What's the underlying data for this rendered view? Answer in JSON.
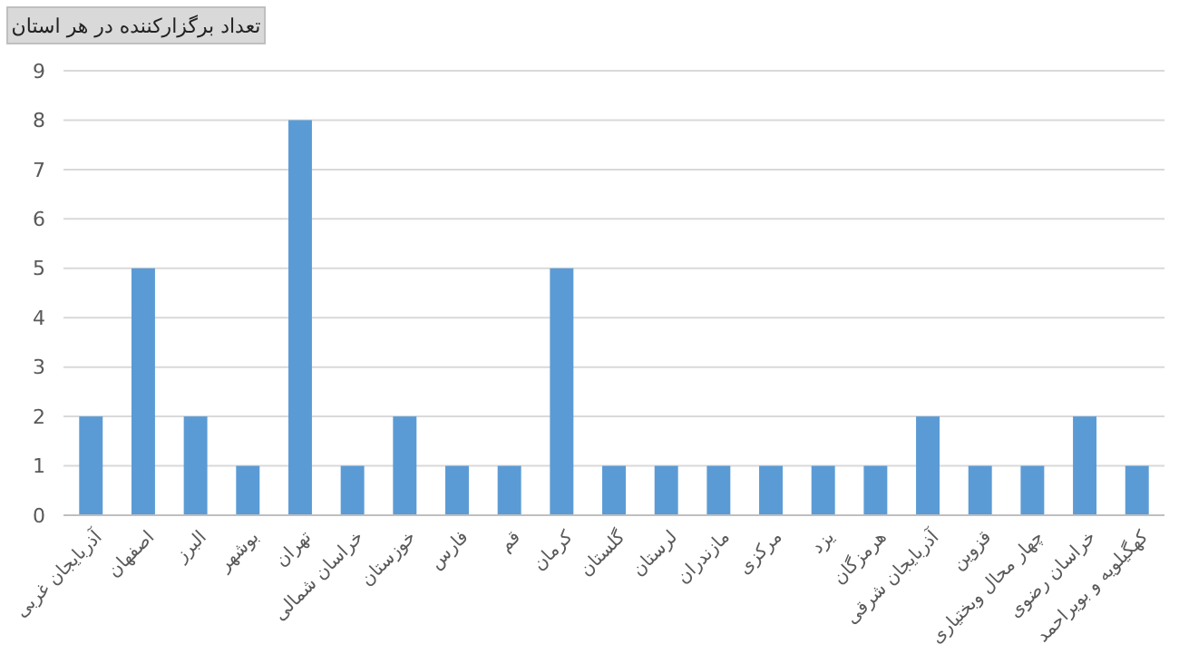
{
  "chart_data": {
    "type": "bar",
    "title": "تعداد برگزارکننده در هر استان",
    "categories": [
      "آذربایجان غربی",
      "اصفهان",
      "البرز",
      "بوشهر",
      "تهران",
      "خراسان شمالی",
      "خوزستان",
      "فارس",
      "قم",
      "کرمان",
      "گلستان",
      "لرستان",
      "مازندران",
      "مرکزی",
      "یزد",
      "هرمزگان",
      "آذربایجان شرقی",
      "قزوین",
      "چهار محال وبختیاری",
      "خراسان رضوی",
      "کهگیلویه و بویراحمد"
    ],
    "values": [
      2,
      5,
      2,
      1,
      8,
      1,
      2,
      1,
      1,
      5,
      1,
      1,
      1,
      1,
      1,
      1,
      2,
      1,
      1,
      2,
      1
    ],
    "color": "#5b9bd5",
    "ylim": [
      0,
      9
    ],
    "yticks": [
      0,
      1,
      2,
      3,
      4,
      5,
      6,
      7,
      8,
      9
    ],
    "grid": "y"
  }
}
